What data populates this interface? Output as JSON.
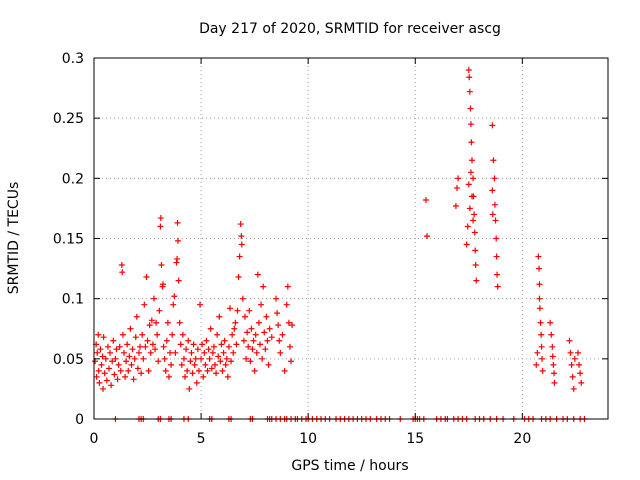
{
  "chart_data": {
    "type": "scatter",
    "title": "Day 217 of 2020, SRMTID for receiver ascg",
    "xlabel": "GPS time / hours",
    "ylabel": "SRMTID / TECUs",
    "xlim": [
      0,
      24
    ],
    "ylim": [
      0,
      0.3
    ],
    "xticks": [
      0,
      5,
      10,
      15,
      20
    ],
    "xtick_labels": [
      "0",
      "5",
      "10",
      "15",
      "20"
    ],
    "yticks": [
      0,
      0.05,
      0.1,
      0.15,
      0.2,
      0.25,
      0.3
    ],
    "ytick_labels": [
      "0",
      "0.05",
      "0.1",
      "0.15",
      "0.2",
      "0.25",
      "0.3"
    ],
    "grid": true,
    "marker": "+",
    "color": "#ff0000",
    "series": [
      {
        "name": "SRMTID",
        "points": [
          [
            0.05,
            0.048
          ],
          [
            0.1,
            0.062
          ],
          [
            0.12,
            0.035
          ],
          [
            0.15,
            0.055
          ],
          [
            0.2,
            0.07
          ],
          [
            0.22,
            0.04
          ],
          [
            0.25,
            0.03
          ],
          [
            0.3,
            0.058
          ],
          [
            0.35,
            0.045
          ],
          [
            0.4,
            0.052
          ],
          [
            0.42,
            0.025
          ],
          [
            0.45,
            0.068
          ],
          [
            0.5,
            0.038
          ],
          [
            0.55,
            0.05
          ],
          [
            0.6,
            0.032
          ],
          [
            0.65,
            0.06
          ],
          [
            0.7,
            0.042
          ],
          [
            0.75,
            0.055
          ],
          [
            0.8,
            0.028
          ],
          [
            0.85,
            0.048
          ],
          [
            0.9,
            0.065
          ],
          [
            0.95,
            0.037
          ],
          [
            1.0,
            0.05
          ],
          [
            1.05,
            0.058
          ],
          [
            1.1,
            0.033
          ],
          [
            1.15,
            0.045
          ],
          [
            1.2,
            0.06
          ],
          [
            1.25,
            0.04
          ],
          [
            1.3,
            0.128
          ],
          [
            1.32,
            0.122
          ],
          [
            1.35,
            0.07
          ],
          [
            1.4,
            0.055
          ],
          [
            1.45,
            0.035
          ],
          [
            1.5,
            0.048
          ],
          [
            1.55,
            0.062
          ],
          [
            1.6,
            0.04
          ],
          [
            1.65,
            0.052
          ],
          [
            1.7,
            0.075
          ],
          [
            1.75,
            0.045
          ],
          [
            1.8,
            0.058
          ],
          [
            1.85,
            0.033
          ],
          [
            1.9,
            0.05
          ],
          [
            1.95,
            0.068
          ],
          [
            2.0,
            0.085
          ],
          [
            2.05,
            0.042
          ],
          [
            2.1,
            0.055
          ],
          [
            2.15,
            0.06
          ],
          [
            2.2,
            0.038
          ],
          [
            2.25,
            0.07
          ],
          [
            2.3,
            0.05
          ],
          [
            2.35,
            0.095
          ],
          [
            2.4,
            0.06
          ],
          [
            2.45,
            0.118
          ],
          [
            2.5,
            0.065
          ],
          [
            2.55,
            0.04
          ],
          [
            2.6,
            0.078
          ],
          [
            2.65,
            0.055
          ],
          [
            2.7,
            0.082
          ],
          [
            2.75,
            0.062
          ],
          [
            2.8,
            0.1
          ],
          [
            2.85,
            0.058
          ],
          [
            2.9,
            0.08
          ],
          [
            2.95,
            0.07
          ],
          [
            3.0,
            0.048
          ],
          [
            3.05,
            0.09
          ],
          [
            3.1,
            0.16
          ],
          [
            3.12,
            0.167
          ],
          [
            3.15,
            0.128
          ],
          [
            3.2,
            0.11
          ],
          [
            3.22,
            0.112
          ],
          [
            3.25,
            0.06
          ],
          [
            3.3,
            0.05
          ],
          [
            3.35,
            0.04
          ],
          [
            3.4,
            0.065
          ],
          [
            3.45,
            0.08
          ],
          [
            3.5,
            0.035
          ],
          [
            3.55,
            0.055
          ],
          [
            3.6,
            0.045
          ],
          [
            3.65,
            0.07
          ],
          [
            3.7,
            0.095
          ],
          [
            3.75,
            0.102
          ],
          [
            3.8,
            0.055
          ],
          [
            3.85,
            0.13
          ],
          [
            3.88,
            0.133
          ],
          [
            3.9,
            0.163
          ],
          [
            3.92,
            0.148
          ],
          [
            3.95,
            0.115
          ],
          [
            4.0,
            0.08
          ],
          [
            4.05,
            0.062
          ],
          [
            4.1,
            0.045
          ],
          [
            4.15,
            0.07
          ],
          [
            4.2,
            0.05
          ],
          [
            4.25,
            0.035
          ],
          [
            4.3,
            0.058
          ],
          [
            4.35,
            0.04
          ],
          [
            4.4,
            0.065
          ],
          [
            4.45,
            0.025
          ],
          [
            4.5,
            0.048
          ],
          [
            4.55,
            0.055
          ],
          [
            4.6,
            0.038
          ],
          [
            4.65,
            0.062
          ],
          [
            4.7,
            0.045
          ],
          [
            4.75,
            0.05
          ],
          [
            4.8,
            0.03
          ],
          [
            4.85,
            0.058
          ],
          [
            4.9,
            0.04
          ],
          [
            4.95,
            0.095
          ],
          [
            5.0,
            0.05
          ],
          [
            5.05,
            0.062
          ],
          [
            5.1,
            0.035
          ],
          [
            5.15,
            0.055
          ],
          [
            5.2,
            0.045
          ],
          [
            5.25,
            0.065
          ],
          [
            5.3,
            0.04
          ],
          [
            5.35,
            0.058
          ],
          [
            5.4,
            0.05
          ],
          [
            5.45,
            0.075
          ],
          [
            5.5,
            0.042
          ],
          [
            5.55,
            0.055
          ],
          [
            5.6,
            0.06
          ],
          [
            5.65,
            0.045
          ],
          [
            5.7,
            0.038
          ],
          [
            5.75,
            0.07
          ],
          [
            5.8,
            0.052
          ],
          [
            5.85,
            0.085
          ],
          [
            5.9,
            0.048
          ],
          [
            5.95,
            0.062
          ],
          [
            6.0,
            0.04
          ],
          [
            6.05,
            0.055
          ],
          [
            6.1,
            0.065
          ],
          [
            6.15,
            0.045
          ],
          [
            6.2,
            0.05
          ],
          [
            6.25,
            0.035
          ],
          [
            6.3,
            0.06
          ],
          [
            6.35,
            0.092
          ],
          [
            6.4,
            0.048
          ],
          [
            6.45,
            0.07
          ],
          [
            6.5,
            0.055
          ],
          [
            6.55,
            0.075
          ],
          [
            6.6,
            0.08
          ],
          [
            6.65,
            0.062
          ],
          [
            6.7,
            0.09
          ],
          [
            6.75,
            0.118
          ],
          [
            6.8,
            0.135
          ],
          [
            6.85,
            0.162
          ],
          [
            6.88,
            0.152
          ],
          [
            6.9,
            0.145
          ],
          [
            6.95,
            0.1
          ],
          [
            7.0,
            0.065
          ],
          [
            7.05,
            0.085
          ],
          [
            7.1,
            0.05
          ],
          [
            7.15,
            0.072
          ],
          [
            7.2,
            0.06
          ],
          [
            7.25,
            0.09
          ],
          [
            7.3,
            0.048
          ],
          [
            7.35,
            0.075
          ],
          [
            7.4,
            0.058
          ],
          [
            7.45,
            0.065
          ],
          [
            7.5,
            0.04
          ],
          [
            7.55,
            0.07
          ],
          [
            7.6,
            0.055
          ],
          [
            7.65,
            0.12
          ],
          [
            7.7,
            0.08
          ],
          [
            7.75,
            0.062
          ],
          [
            7.8,
            0.095
          ],
          [
            7.85,
            0.05
          ],
          [
            7.9,
            0.11
          ],
          [
            7.95,
            0.072
          ],
          [
            8.0,
            0.058
          ],
          [
            8.05,
            0.085
          ],
          [
            8.1,
            0.065
          ],
          [
            8.15,
            0.045
          ],
          [
            8.2,
            0.075
          ],
          [
            8.3,
            0.068
          ],
          [
            8.5,
            0.1
          ],
          [
            8.55,
            0.088
          ],
          [
            8.6,
            0.078
          ],
          [
            8.65,
            0.065
          ],
          [
            8.7,
            0.055
          ],
          [
            8.8,
            0.07
          ],
          [
            8.9,
            0.04
          ],
          [
            9.0,
            0.095
          ],
          [
            9.05,
            0.11
          ],
          [
            9.1,
            0.08
          ],
          [
            9.15,
            0.06
          ],
          [
            9.2,
            0.048
          ],
          [
            9.25,
            0.078
          ],
          [
            15.5,
            0.182
          ],
          [
            15.55,
            0.152
          ],
          [
            16.9,
            0.177
          ],
          [
            16.95,
            0.192
          ],
          [
            17.0,
            0.2
          ],
          [
            17.5,
            0.29
          ],
          [
            17.52,
            0.284
          ],
          [
            17.55,
            0.272
          ],
          [
            17.58,
            0.258
          ],
          [
            17.6,
            0.245
          ],
          [
            17.62,
            0.23
          ],
          [
            17.65,
            0.215
          ],
          [
            17.7,
            0.2
          ],
          [
            17.72,
            0.185
          ],
          [
            17.75,
            0.17
          ],
          [
            17.78,
            0.155
          ],
          [
            17.8,
            0.14
          ],
          [
            17.82,
            0.128
          ],
          [
            17.85,
            0.115
          ],
          [
            17.6,
            0.205
          ],
          [
            17.65,
            0.185
          ],
          [
            17.7,
            0.165
          ],
          [
            17.55,
            0.175
          ],
          [
            17.5,
            0.195
          ],
          [
            17.45,
            0.16
          ],
          [
            17.4,
            0.145
          ],
          [
            18.6,
            0.244
          ],
          [
            18.65,
            0.215
          ],
          [
            18.7,
            0.2
          ],
          [
            18.72,
            0.178
          ],
          [
            18.75,
            0.165
          ],
          [
            18.78,
            0.15
          ],
          [
            18.8,
            0.135
          ],
          [
            18.82,
            0.12
          ],
          [
            18.85,
            0.11
          ],
          [
            18.6,
            0.19
          ],
          [
            18.62,
            0.17
          ],
          [
            20.75,
            0.135
          ],
          [
            20.78,
            0.125
          ],
          [
            20.8,
            0.1
          ],
          [
            20.82,
            0.092
          ],
          [
            20.85,
            0.08
          ],
          [
            20.88,
            0.07
          ],
          [
            20.9,
            0.06
          ],
          [
            20.92,
            0.05
          ],
          [
            20.95,
            0.04
          ],
          [
            20.8,
            0.112
          ],
          [
            20.7,
            0.055
          ],
          [
            20.65,
            0.045
          ],
          [
            21.3,
            0.08
          ],
          [
            21.35,
            0.07
          ],
          [
            21.4,
            0.06
          ],
          [
            21.42,
            0.052
          ],
          [
            21.45,
            0.045
          ],
          [
            21.48,
            0.038
          ],
          [
            21.5,
            0.03
          ],
          [
            22.2,
            0.065
          ],
          [
            22.25,
            0.055
          ],
          [
            22.3,
            0.045
          ],
          [
            22.35,
            0.035
          ],
          [
            22.4,
            0.025
          ],
          [
            22.45,
            0.05
          ],
          [
            22.6,
            0.055
          ],
          [
            22.65,
            0.045
          ],
          [
            22.7,
            0.038
          ],
          [
            22.75,
            0.03
          ]
        ],
        "zero_points": [
          1.0,
          2.1,
          2.2,
          2.3,
          3.0,
          3.1,
          3.5,
          3.6,
          4.2,
          4.4,
          5.4,
          5.5,
          6.3,
          6.4,
          7.3,
          7.4,
          8.1,
          8.2,
          8.3,
          8.5,
          8.7,
          8.9,
          9.0,
          9.2,
          9.4,
          9.5,
          9.7,
          9.9,
          10.0,
          10.2,
          10.4,
          10.6,
          10.8,
          11.0,
          11.3,
          11.5,
          11.7,
          11.9,
          12.1,
          12.3,
          12.5,
          12.7,
          12.9,
          13.2,
          13.4,
          13.6,
          13.8,
          14.3,
          14.9,
          15.0,
          15.1,
          15.2,
          15.4,
          16.0,
          16.2,
          16.4,
          16.5,
          16.8,
          17.0,
          17.2,
          17.4,
          17.8,
          18.0,
          18.2,
          18.5,
          18.8,
          19.1,
          19.6,
          20.1,
          20.3,
          20.5,
          20.9,
          21.1,
          21.3,
          21.6,
          21.9,
          22.1,
          22.4,
          22.7,
          22.9
        ]
      }
    ]
  }
}
